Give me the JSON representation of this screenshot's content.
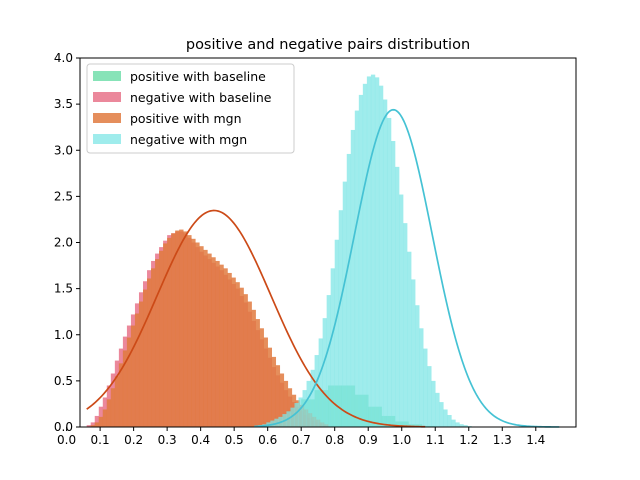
{
  "chart_data": {
    "type": "histogram",
    "title": "positive and negative pairs distribution",
    "xlabel": "",
    "ylabel": "",
    "xlim": [
      0.04,
      1.52
    ],
    "ylim": [
      0.0,
      4.0
    ],
    "x_ticks": [
      "0.0",
      "0.1",
      "0.2",
      "0.3",
      "0.4",
      "0.5",
      "0.6",
      "0.7",
      "0.8",
      "0.9",
      "1.0",
      "1.1",
      "1.2",
      "1.3",
      "1.4"
    ],
    "x_tick_values": [
      0.0,
      0.1,
      0.2,
      0.3,
      0.4,
      0.5,
      0.6,
      0.7,
      0.8,
      0.9,
      1.0,
      1.1,
      1.2,
      1.3,
      1.4
    ],
    "y_ticks": [
      "0.0",
      "0.5",
      "1.0",
      "1.5",
      "2.0",
      "2.5",
      "3.0",
      "3.5",
      "4.0"
    ],
    "y_tick_values": [
      0.0,
      0.5,
      1.0,
      1.5,
      2.0,
      2.5,
      3.0,
      3.5,
      4.0
    ],
    "grid": false,
    "legend_position": "top-left",
    "series": [
      {
        "name": "positive with baseline",
        "type": "histogram",
        "color": "#5fd9a0",
        "alpha": 0.75,
        "bin_start": 0.5,
        "bin_width": 0.04,
        "values": [
          0.01,
          0.03,
          0.06,
          0.12,
          0.2,
          0.3,
          0.4,
          0.45,
          0.45,
          0.35,
          0.22,
          0.12,
          0.06,
          0.03,
          0.01
        ]
      },
      {
        "name": "negative with baseline",
        "type": "histogram",
        "color": "#e8738a",
        "alpha": 0.85,
        "bin_start": 0.06,
        "bin_width": 0.012,
        "values": [
          0.02,
          0.05,
          0.12,
          0.22,
          0.32,
          0.45,
          0.58,
          0.72,
          0.85,
          0.98,
          1.1,
          1.22,
          1.34,
          1.46,
          1.58,
          1.7,
          1.8,
          1.88,
          1.95,
          2.02,
          2.08,
          2.1,
          2.12,
          2.12,
          2.1,
          2.05,
          2.0,
          1.95,
          1.9,
          1.86,
          1.82,
          1.78,
          1.74,
          1.7,
          1.65,
          1.6,
          1.55,
          1.5,
          1.42,
          1.35,
          1.25,
          1.15,
          1.05,
          0.95,
          0.85,
          0.75,
          0.65,
          0.56,
          0.48,
          0.4,
          0.33,
          0.27,
          0.22,
          0.17,
          0.13,
          0.1,
          0.07,
          0.05,
          0.03,
          0.02
        ]
      },
      {
        "name": "positive with mgn",
        "type": "histogram",
        "color": "#e07a3f",
        "alpha": 0.85,
        "bin_start": 0.06,
        "bin_width": 0.012,
        "values": [
          0.0,
          0.02,
          0.05,
          0.11,
          0.19,
          0.3,
          0.42,
          0.55,
          0.69,
          0.83,
          0.97,
          1.1,
          1.23,
          1.36,
          1.49,
          1.61,
          1.72,
          1.82,
          1.91,
          1.99,
          2.05,
          2.1,
          2.13,
          2.14,
          2.12,
          2.08,
          2.04,
          2.0,
          1.96,
          1.92,
          1.88,
          1.84,
          1.8,
          1.76,
          1.72,
          1.67,
          1.62,
          1.57,
          1.51,
          1.44,
          1.36,
          1.27,
          1.17,
          1.07,
          0.97,
          0.86,
          0.76,
          0.67,
          0.58,
          0.5,
          0.42,
          0.35,
          0.29,
          0.24,
          0.19,
          0.15,
          0.11,
          0.08,
          0.05,
          0.03
        ]
      },
      {
        "name": "negative with mgn",
        "type": "histogram",
        "color": "#7fe6e6",
        "alpha": 0.75,
        "bin_start": 0.56,
        "bin_width": 0.012,
        "values": [
          0.01,
          0.02,
          0.03,
          0.05,
          0.07,
          0.09,
          0.11,
          0.14,
          0.17,
          0.21,
          0.26,
          0.32,
          0.4,
          0.5,
          0.62,
          0.78,
          0.96,
          1.18,
          1.43,
          1.72,
          2.03,
          2.35,
          2.66,
          2.96,
          3.22,
          3.43,
          3.6,
          3.72,
          3.8,
          3.82,
          3.79,
          3.7,
          3.55,
          3.35,
          3.1,
          2.82,
          2.52,
          2.21,
          1.9,
          1.6,
          1.32,
          1.07,
          0.85,
          0.66,
          0.5,
          0.37,
          0.27,
          0.19,
          0.13,
          0.08,
          0.05,
          0.03,
          0.02,
          0.01
        ]
      }
    ],
    "fits": [
      {
        "type": "normal-curve",
        "color": "#cc4a17",
        "mean": 0.44,
        "std": 0.17,
        "x_range": [
          0.06,
          1.07
        ]
      },
      {
        "type": "normal-curve",
        "color": "#45c2d4",
        "mean": 0.975,
        "std": 0.116,
        "x_range": [
          0.56,
          1.47
        ]
      }
    ]
  }
}
